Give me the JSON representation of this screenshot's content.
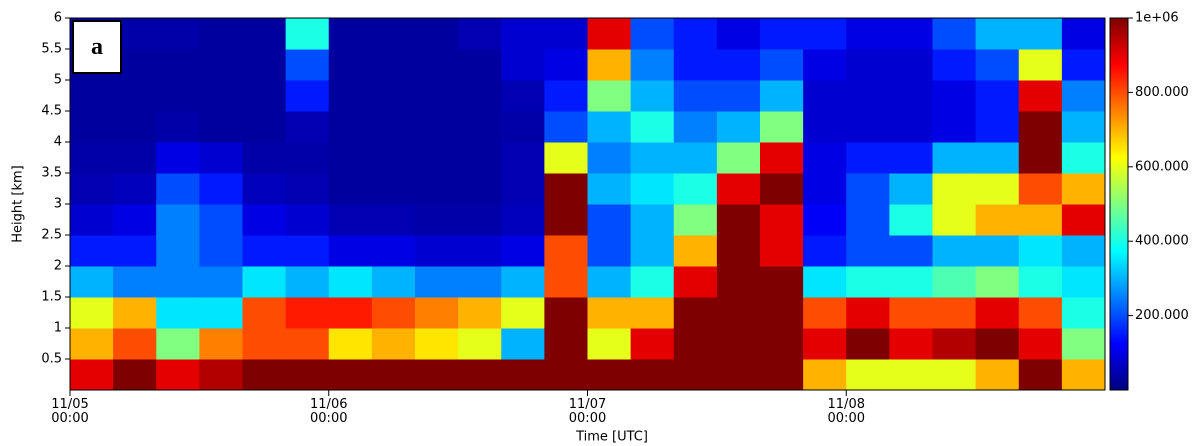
{
  "chart_data": {
    "type": "heatmap",
    "annotation": "a",
    "xlabel": "Time [UTC]",
    "ylabel": "Height [km]",
    "x_edges": [
      0,
      4,
      8,
      12,
      16,
      20,
      24,
      28,
      32,
      36,
      40,
      44,
      48,
      52,
      56,
      60,
      64,
      68,
      72,
      76,
      80,
      84,
      88,
      92,
      96
    ],
    "y_edges": [
      0,
      0.5,
      1,
      1.5,
      2,
      2.5,
      3,
      3.5,
      4,
      4.5,
      5,
      5.5,
      6
    ],
    "z": [
      [
        900000,
        700000,
        600000,
        300000,
        150000,
        80000,
        50000,
        40000,
        30000,
        30000,
        30000,
        40000
      ],
      [
        1000000,
        800000,
        700000,
        250000,
        150000,
        100000,
        60000,
        40000,
        30000,
        30000,
        30000,
        40000
      ],
      [
        900000,
        500000,
        350000,
        250000,
        250000,
        250000,
        200000,
        100000,
        40000,
        30000,
        30000,
        40000
      ],
      [
        950000,
        750000,
        350000,
        250000,
        200000,
        200000,
        150000,
        80000,
        30000,
        30000,
        30000,
        30000
      ],
      [
        1000000,
        800000,
        800000,
        350000,
        150000,
        100000,
        60000,
        40000,
        30000,
        30000,
        30000,
        30000
      ],
      [
        1100000,
        800000,
        850000,
        300000,
        150000,
        80000,
        50000,
        40000,
        50000,
        150000,
        200000,
        400000
      ],
      [
        1200000,
        650000,
        850000,
        350000,
        100000,
        50000,
        30000,
        30000,
        30000,
        30000,
        30000,
        30000
      ],
      [
        1200000,
        700000,
        800000,
        300000,
        100000,
        50000,
        30000,
        30000,
        30000,
        30000,
        30000,
        30000
      ],
      [
        1200000,
        650000,
        750000,
        250000,
        80000,
        40000,
        30000,
        30000,
        30000,
        30000,
        30000,
        30000
      ],
      [
        1200000,
        600000,
        700000,
        250000,
        80000,
        40000,
        30000,
        30000,
        30000,
        30000,
        30000,
        50000
      ],
      [
        1200000,
        300000,
        600000,
        300000,
        100000,
        60000,
        50000,
        50000,
        40000,
        50000,
        80000,
        80000
      ],
      [
        1200000,
        1000000,
        1000000,
        800000,
        800000,
        1000000,
        1000000,
        600000,
        200000,
        150000,
        100000,
        80000
      ],
      [
        1200000,
        600000,
        700000,
        300000,
        200000,
        200000,
        300000,
        250000,
        300000,
        500000,
        700000,
        900000
      ],
      [
        1200000,
        900000,
        700000,
        400000,
        300000,
        300000,
        350000,
        300000,
        400000,
        300000,
        250000,
        200000
      ],
      [
        1200000,
        1100000,
        1000000,
        900000,
        700000,
        500000,
        400000,
        300000,
        250000,
        200000,
        150000,
        150000
      ],
      [
        1200000,
        1200000,
        1200000,
        1100000,
        1100000,
        1100000,
        900000,
        500000,
        300000,
        200000,
        150000,
        100000
      ],
      [
        1200000,
        1200000,
        1100000,
        1000000,
        900000,
        900000,
        1000000,
        900000,
        500000,
        300000,
        200000,
        150000
      ],
      [
        700000,
        900000,
        800000,
        350000,
        150000,
        120000,
        100000,
        100000,
        80000,
        80000,
        100000,
        150000
      ],
      [
        600000,
        1000000,
        900000,
        400000,
        200000,
        200000,
        200000,
        150000,
        80000,
        80000,
        80000,
        100000
      ],
      [
        600000,
        900000,
        800000,
        400000,
        200000,
        400000,
        300000,
        150000,
        80000,
        80000,
        80000,
        100000
      ],
      [
        600000,
        950000,
        800000,
        450000,
        300000,
        600000,
        600000,
        300000,
        100000,
        100000,
        150000,
        200000
      ],
      [
        700000,
        1000000,
        900000,
        500000,
        300000,
        700000,
        600000,
        300000,
        150000,
        150000,
        200000,
        300000
      ],
      [
        1100000,
        900000,
        800000,
        400000,
        350000,
        700000,
        800000,
        1000000,
        1100000,
        900000,
        600000,
        300000
      ],
      [
        700000,
        500000,
        400000,
        350000,
        300000,
        900000,
        700000,
        400000,
        300000,
        250000,
        150000,
        100000
      ]
    ],
    "xlim": [
      0,
      96
    ],
    "xticks": [
      {
        "value": 0,
        "label": "11/05\n00:00"
      },
      {
        "value": 24,
        "label": "11/06\n00:00"
      },
      {
        "value": 48,
        "label": "11/07\n00:00"
      },
      {
        "value": 72,
        "label": "11/08\n00:00"
      }
    ],
    "ylim": [
      0,
      6
    ],
    "yticks": [
      0.5,
      1,
      1.5,
      2,
      2.5,
      3,
      3.5,
      4,
      4.5,
      5,
      5.5,
      6
    ],
    "clim": [
      0,
      1000000
    ],
    "cticks": [
      {
        "value": 200000,
        "label": "200.000"
      },
      {
        "value": 400000,
        "label": "400.000"
      },
      {
        "value": 600000,
        "label": "600.000"
      },
      {
        "value": 800000,
        "label": "800.000"
      },
      {
        "value": 1000000,
        "label": "1e+06"
      }
    ],
    "colormap": [
      "#00007f",
      "#0000ff",
      "#0080ff",
      "#00ffff",
      "#80ff80",
      "#ffff00",
      "#ff8000",
      "#ff0000",
      "#7f0000"
    ]
  }
}
